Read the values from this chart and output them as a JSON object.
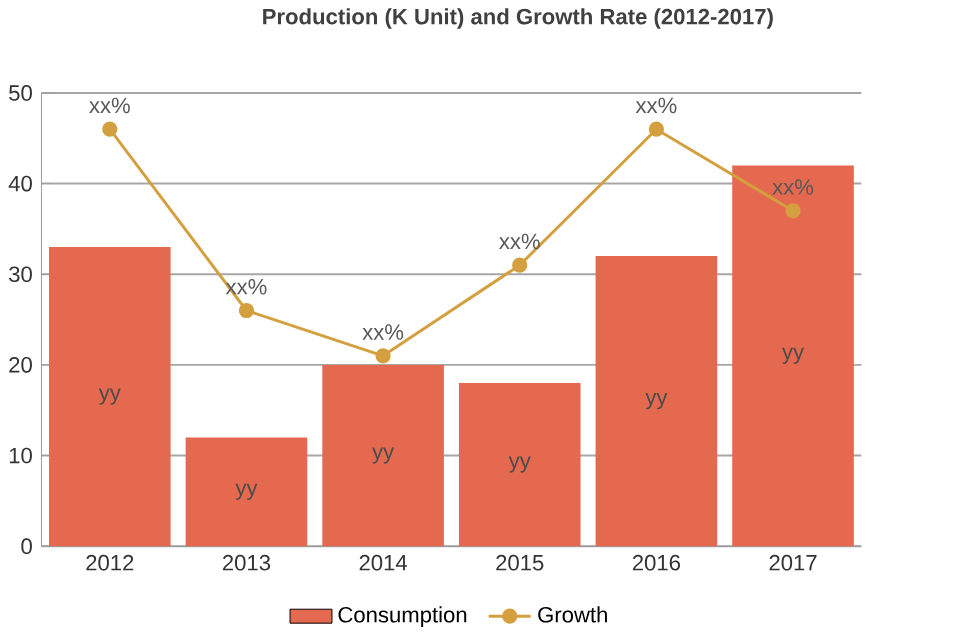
{
  "chart_data": {
    "type": "bar",
    "title": "Production (K Unit) and Growth Rate (2012-2017)",
    "categories": [
      "2012",
      "2013",
      "2014",
      "2015",
      "2016",
      "2017"
    ],
    "series": [
      {
        "name": "Consumption",
        "color": "#e4694f",
        "values": [
          33,
          12,
          20,
          18,
          32,
          42
        ],
        "value_labels": [
          "yy",
          "yy",
          "yy",
          "yy",
          "yy",
          "yy"
        ]
      },
      {
        "name": "Growth",
        "type": "line",
        "color": "#d4a03f",
        "marker": "circle",
        "values": [
          46,
          26,
          21,
          31,
          46,
          37
        ],
        "value_labels": [
          "xx%",
          "xx%",
          "xx%",
          "xx%",
          "xx%",
          "xx%"
        ]
      }
    ],
    "ylim": [
      0,
      50
    ],
    "yticks": [
      0,
      10,
      20,
      30,
      40,
      50
    ],
    "grid": "y",
    "legend": "bottom"
  }
}
